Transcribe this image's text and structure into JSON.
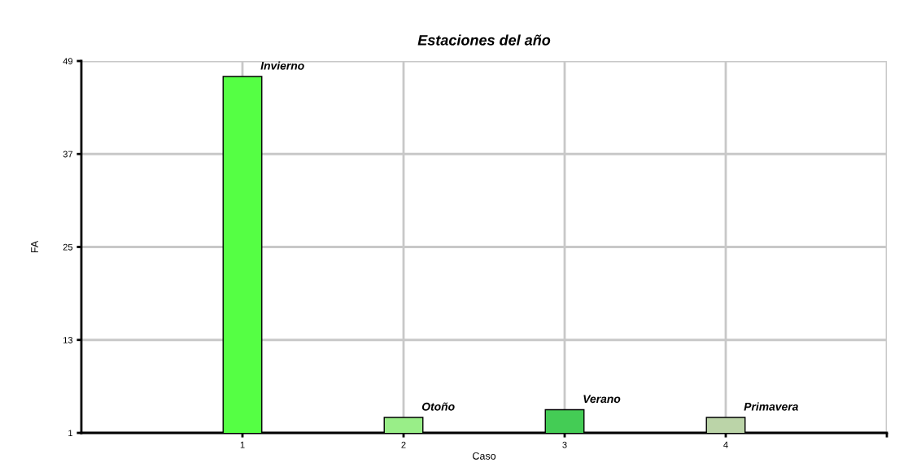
{
  "chart_data": {
    "type": "bar",
    "title": "Estaciones del año",
    "xlabel": "Caso",
    "ylabel": "FA",
    "x": [
      1,
      2,
      3,
      4
    ],
    "values": [
      47,
      3,
      4,
      3
    ],
    "colors": [
      "#55ff44",
      "#99ee88",
      "#44cc55",
      "#bbd4a8"
    ],
    "xlim": [
      0,
      5
    ],
    "xticks": [
      1,
      2,
      3,
      4,
      {
        "value": 5,
        "label": null
      }
    ],
    "ylim": [
      1,
      49
    ],
    "yticks": [
      1,
      13,
      25,
      37,
      49
    ],
    "grid": true,
    "annotations": [
      {
        "text": "Invierno",
        "x": 1,
        "y": 47
      },
      {
        "text": "Otoño",
        "x": 2,
        "y": 3
      },
      {
        "text": "Verano",
        "x": 3,
        "y": 4
      },
      {
        "text": "Primavera",
        "x": 4,
        "y": 3
      }
    ]
  }
}
